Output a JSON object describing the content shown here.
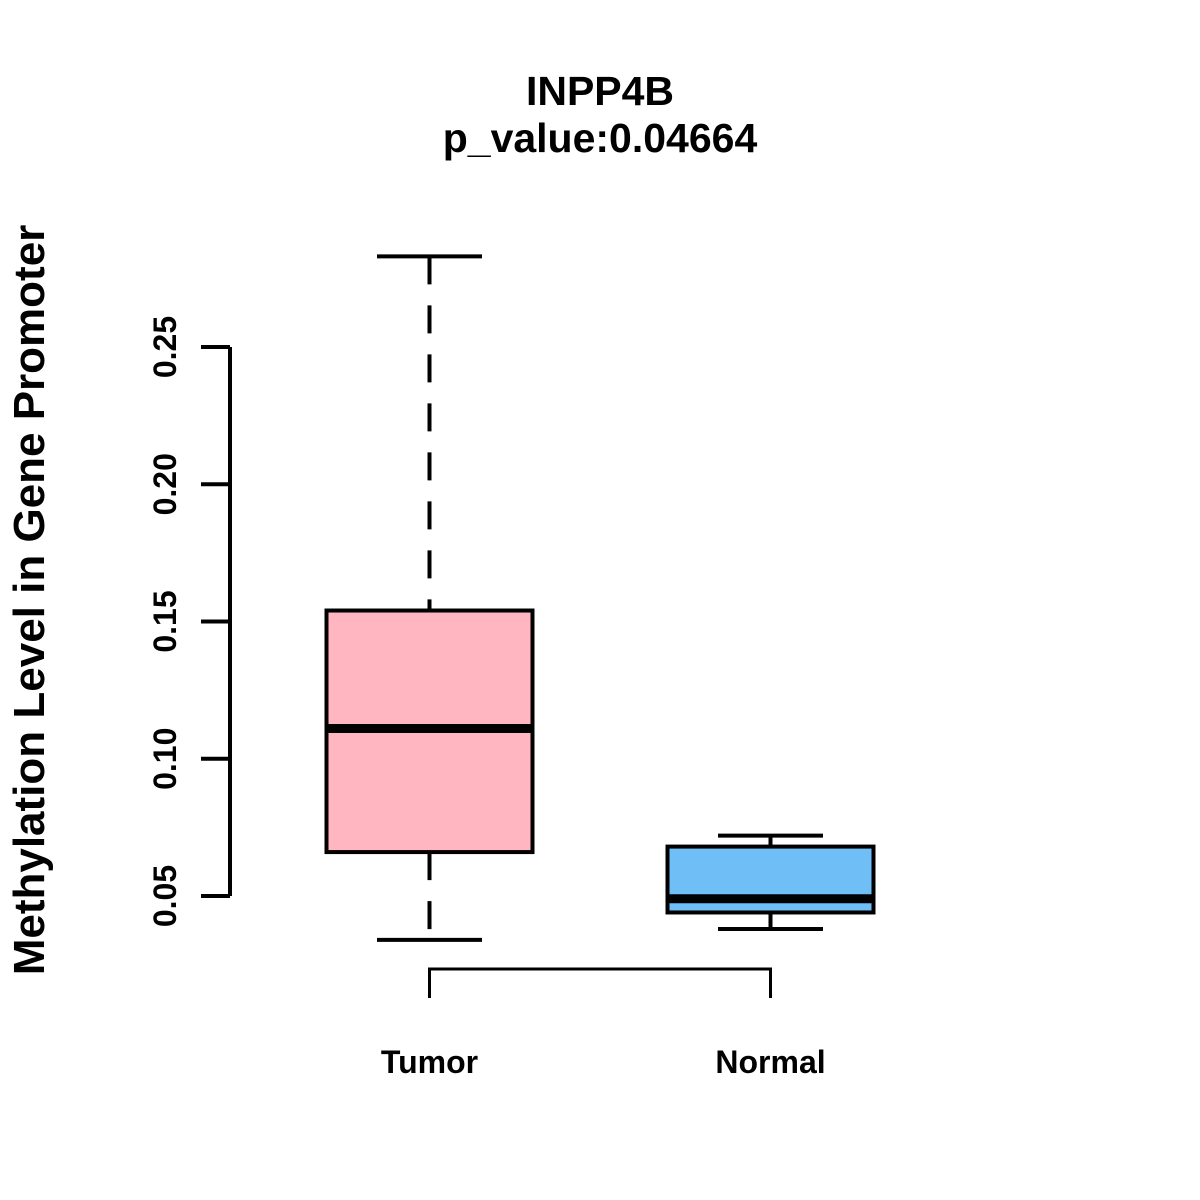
{
  "chart_data": {
    "type": "boxplot",
    "title": "INPP4B",
    "subtitle": "p_value:0.04664",
    "p_value": 0.04664,
    "ylabel": "Methylation Level in Gene Promoter",
    "xlabel": "",
    "categories": [
      "Tumor",
      "Normal"
    ],
    "series": [
      {
        "name": "Tumor",
        "lower_whisker": 0.034,
        "q1": 0.066,
        "median": 0.111,
        "q3": 0.154,
        "upper_whisker": 0.283,
        "fill_color": "#FFB6C1",
        "border_color": "#000000"
      },
      {
        "name": "Normal",
        "lower_whisker": 0.038,
        "q1": 0.044,
        "median": 0.049,
        "q3": 0.068,
        "upper_whisker": 0.072,
        "fill_color": "#6FBEF5",
        "border_color": "#000000"
      }
    ],
    "y_ticks": [
      0.05,
      0.1,
      0.15,
      0.2,
      0.25
    ],
    "y_axis_range": [
      0.05,
      0.25
    ],
    "whisker_line_style": "dashed",
    "grid": "off",
    "legend": "none",
    "axis_color": "#000000",
    "significance_bracket": {
      "from": "Tumor",
      "to": "Normal"
    }
  }
}
